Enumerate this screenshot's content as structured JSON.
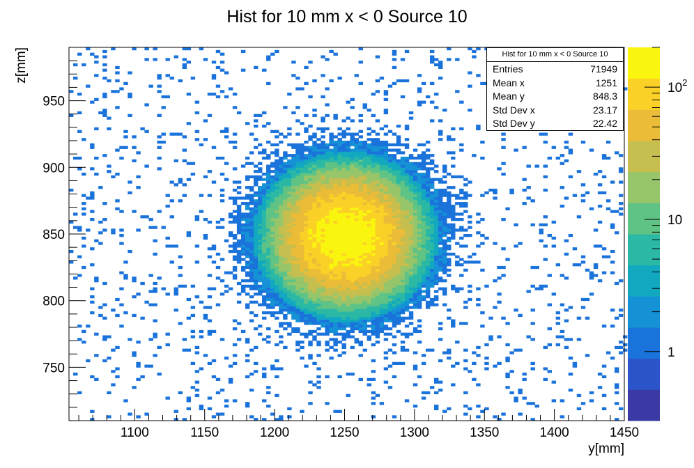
{
  "chart_data": {
    "type": "heatmap",
    "title": "Hist for 10 mm x < 0 Source 10",
    "xlabel": "y[mm]",
    "ylabel": "z[mm]",
    "xlim": [
      1053,
      1450
    ],
    "ylim": [
      710,
      990
    ],
    "x_ticks": [
      1100,
      1150,
      1200,
      1250,
      1300,
      1350,
      1400,
      1450
    ],
    "y_ticks": [
      750,
      800,
      850,
      900,
      950
    ],
    "z_scale": "log",
    "z_range": [
      0.3,
      200
    ],
    "z_ticks": [
      {
        "value": 1,
        "label": "1"
      },
      {
        "value": 10,
        "label": "10"
      },
      {
        "value": 100,
        "label": "10",
        "sup": "2"
      }
    ],
    "peak": {
      "x": 1251,
      "y": 848.3,
      "max_count": 180
    },
    "colormap": [
      "#3b3aa4",
      "#2c55c9",
      "#1a72db",
      "#1592d5",
      "#12a8c0",
      "#2bb8a4",
      "#60c386",
      "#96c56a",
      "#c6be4f",
      "#eabc38",
      "#fbd027",
      "#f9f50f"
    ],
    "background_color": "#1a8fd6",
    "stats": {
      "title": "Hist for 10 mm x < 0 Source 10",
      "entries": [
        {
          "label": "Entries",
          "value": "71949"
        },
        {
          "label": "Mean x",
          "value": "1251"
        },
        {
          "label": "Mean y",
          "value": "848.3"
        },
        {
          "label": "Std Dev x",
          "value": "23.17"
        },
        {
          "label": "Std Dev y",
          "value": "22.42"
        }
      ]
    }
  }
}
